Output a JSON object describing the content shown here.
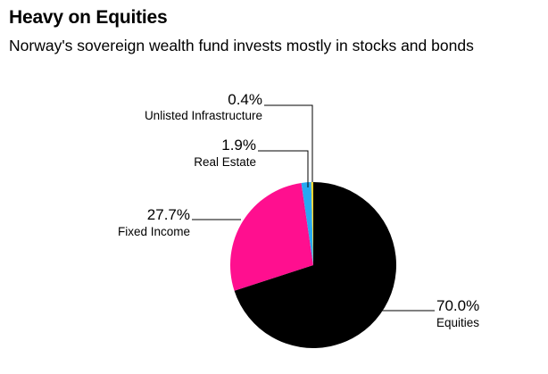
{
  "header": {
    "title": "Heavy on Equities",
    "subtitle": "Norway's sovereign wealth fund invests mostly in stocks and bonds"
  },
  "chart_data": {
    "type": "pie",
    "title": "Heavy on Equities",
    "subtitle": "Norway's sovereign wealth fund invests mostly in stocks and bonds",
    "slices": [
      {
        "label": "Equities",
        "value": 70.0,
        "value_label": "70.0%",
        "color": "#000000"
      },
      {
        "label": "Fixed Income",
        "value": 27.7,
        "value_label": "27.7%",
        "color": "#ff0f8f"
      },
      {
        "label": "Real Estate",
        "value": 1.9,
        "value_label": "1.9%",
        "color": "#27a9f2"
      },
      {
        "label": "Unlisted Infrastructure",
        "value": 0.4,
        "value_label": "0.4%",
        "color": "#f7d630"
      }
    ],
    "legend": "none"
  }
}
